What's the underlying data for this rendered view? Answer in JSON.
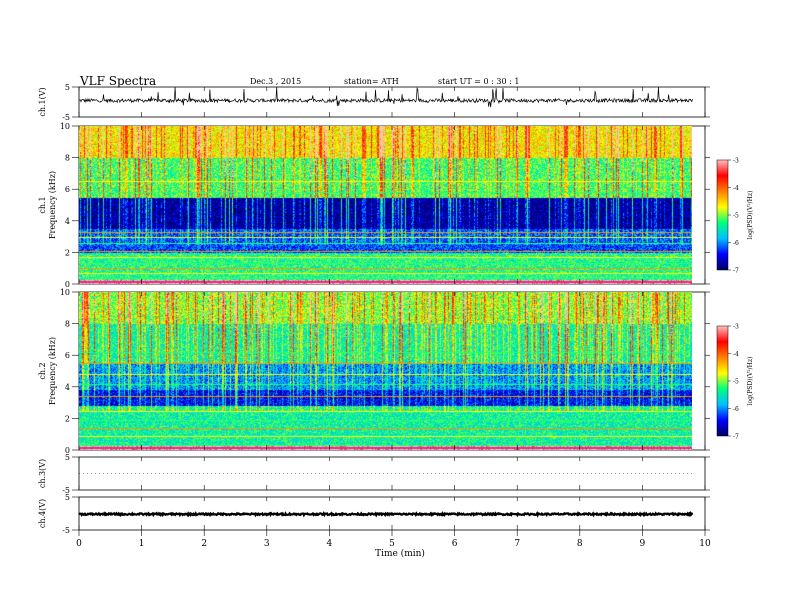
{
  "header": {
    "title": "VLF  Spectra",
    "date": "Dec.3  , 2015",
    "station": "station= ATH",
    "start_ut": "start  UT  =   0 : 30 : 1"
  },
  "colors": {
    "colormap": [
      "#000060",
      "#0000ff",
      "#00bfff",
      "#00ff80",
      "#ffff00",
      "#ff8000",
      "#ff0000",
      "#ffc0c0"
    ],
    "trace": "#000000",
    "background": "#ffffff"
  },
  "chart_data": [
    {
      "type": "line",
      "panel": "ch1-waveform",
      "ylabel": "ch.1(V)",
      "ylim": [
        -5,
        5
      ],
      "yticks": [
        "5",
        "-5"
      ],
      "x_range": [
        0,
        9.8
      ],
      "baseline": 0.5,
      "noise_amplitude": 0.6,
      "spike_amplitude": 3.5
    },
    {
      "type": "heatmap",
      "panel": "ch1-spectrogram",
      "ylabel": "ch.1\nFrequency (kHz)",
      "ylim": [
        0,
        10
      ],
      "yticks": [
        "0",
        "2",
        "4",
        "6",
        "8",
        "10"
      ],
      "x_range": [
        0,
        9.8
      ],
      "colorbar": {
        "label": "log(PSD)(V²/Hz)",
        "range": [
          -7,
          -3
        ],
        "ticks": [
          "-3",
          "-4",
          "-5",
          "-6",
          "-7"
        ]
      },
      "bands": [
        {
          "f": [
            0,
            0.3
          ],
          "level": -3.0
        },
        {
          "f": [
            0.3,
            2.0
          ],
          "level": -5.3
        },
        {
          "f": [
            2.0,
            3.5
          ],
          "level": -6.2
        },
        {
          "f": [
            3.5,
            5.5
          ],
          "level": -6.8
        },
        {
          "f": [
            5.5,
            8.0
          ],
          "level": -5.2
        },
        {
          "f": [
            8.0,
            10
          ],
          "level": -4.6
        }
      ],
      "lines_khz": [
        0.4,
        0.7,
        1.0,
        1.3,
        1.7,
        2.1,
        2.6,
        3.0,
        3.3,
        5.8,
        6.5
      ]
    },
    {
      "type": "heatmap",
      "panel": "ch2-spectrogram",
      "ylabel": "ch.2\nFrequency (kHz)",
      "ylim": [
        0,
        10
      ],
      "yticks": [
        "0",
        "2",
        "4",
        "6",
        "8",
        "10"
      ],
      "x_range": [
        0,
        9.8
      ],
      "colorbar": {
        "label": "log(PSD)(V²/Hz)",
        "range": [
          -7,
          -3
        ],
        "ticks": [
          "-3",
          "-4",
          "-5",
          "-6",
          "-7"
        ]
      },
      "bands": [
        {
          "f": [
            0,
            0.3
          ],
          "level": -3.0
        },
        {
          "f": [
            0.3,
            2.8
          ],
          "level": -5.4
        },
        {
          "f": [
            2.8,
            3.8
          ],
          "level": -6.5
        },
        {
          "f": [
            3.8,
            5.5
          ],
          "level": -6.0
        },
        {
          "f": [
            5.5,
            8.0
          ],
          "level": -5.4
        },
        {
          "f": [
            8.0,
            10
          ],
          "level": -5.0
        }
      ],
      "lines_khz": [
        0.3,
        0.9,
        1.4,
        1.9,
        2.5,
        3.4,
        4.2,
        4.8,
        5.5,
        6.2
      ]
    },
    {
      "type": "line",
      "panel": "ch3-waveform",
      "ylabel": "ch.3(V)",
      "ylim": [
        -5,
        5
      ],
      "yticks": [
        "5",
        "-5"
      ],
      "x_range": [
        0,
        9.8
      ],
      "baseline": 0,
      "noise_amplitude": 0,
      "spike_amplitude": 0
    },
    {
      "type": "line",
      "panel": "ch4-waveform",
      "ylabel": "ch.4(V)",
      "ylim": [
        -5,
        5
      ],
      "yticks": [
        "5",
        "-5"
      ],
      "x_range": [
        0,
        9.8
      ],
      "baseline": -0.2,
      "noise_amplitude": 0.25,
      "spike_amplitude": 0
    }
  ],
  "x_axis": {
    "label": "Time  (min)",
    "range": [
      0,
      10
    ],
    "ticks": [
      "0",
      "1",
      "2",
      "3",
      "4",
      "5",
      "6",
      "7",
      "8",
      "9",
      "10"
    ]
  }
}
